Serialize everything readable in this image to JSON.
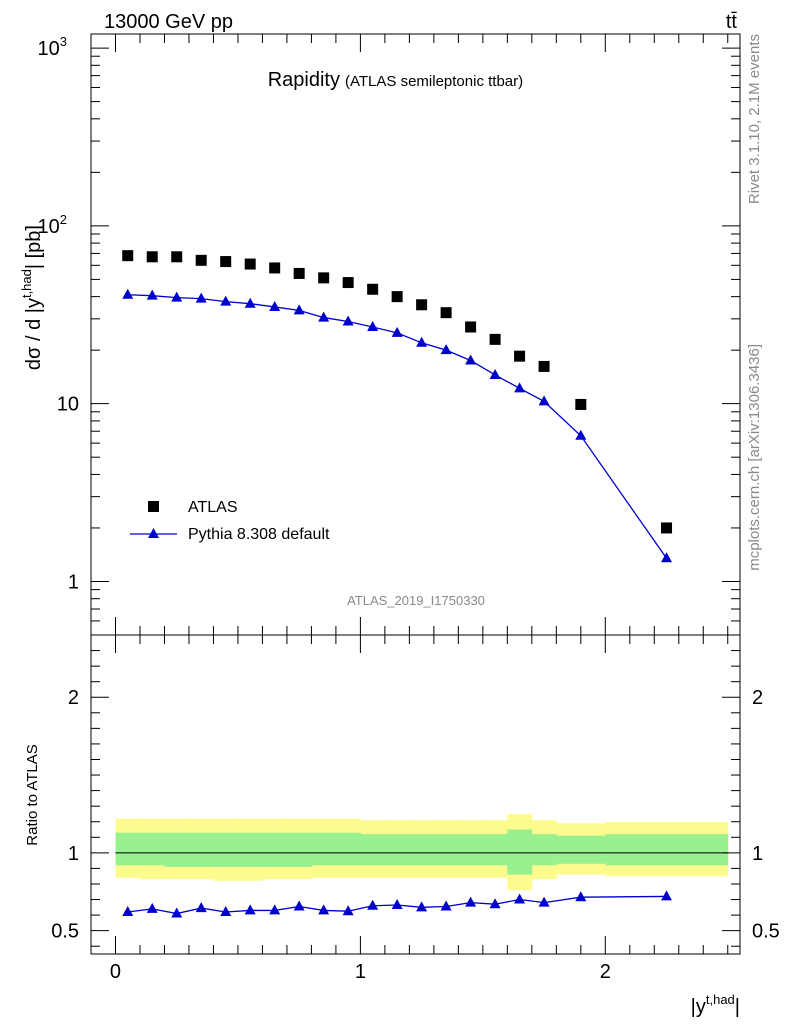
{
  "header": {
    "energy_label": "13000 GeV pp",
    "process_label": "tt̄"
  },
  "side": {
    "rivet_label": "Rivet 3.1.10,  2.1M events",
    "mcplots_label": "mcplots.cern.ch [arXiv:1306.3436]"
  },
  "chart_data": [
    {
      "type": "scatter",
      "title": "Rapidity",
      "subtitle": "(ATLAS semileptonic ttbar)",
      "ylabel": "dσ / d |y",
      "ylabel_sup": "t,had",
      "ylabel_unit": "| [pb]",
      "xlabel": "|y",
      "xlabel_sup": "t,had",
      "xlabel_close": "|",
      "yscale": "log",
      "xlim": [
        -0.1,
        2.55
      ],
      "ylim": [
        0.5,
        1200
      ],
      "y_tick_labels": [
        {
          "value": 1,
          "label": "1"
        },
        {
          "value": 10,
          "label": "10"
        },
        {
          "value": 100,
          "label": "10",
          "exp": "2"
        },
        {
          "value": 1000,
          "label": "10",
          "exp": "3"
        }
      ],
      "x_ticks": [
        0,
        1,
        2
      ],
      "analysis_id": "ATLAS_2019_I1750330",
      "legend": {
        "placement": "bottom-left"
      },
      "series": [
        {
          "name": "ATLAS",
          "marker": "square",
          "color": "#000000",
          "x": [
            0.05,
            0.15,
            0.25,
            0.35,
            0.45,
            0.55,
            0.65,
            0.75,
            0.85,
            0.95,
            1.05,
            1.15,
            1.25,
            1.35,
            1.45,
            1.55,
            1.65,
            1.75,
            1.9,
            2.25
          ],
          "y": [
            68,
            67,
            67,
            64,
            63,
            61,
            58,
            54,
            51,
            48,
            44,
            40,
            36,
            32.5,
            27,
            23,
            18.5,
            16.2,
            9.9,
            2.0
          ]
        },
        {
          "name": "Pythia 8.308 default",
          "marker": "triangle",
          "color": "#0000cc",
          "x": [
            0.05,
            0.15,
            0.25,
            0.35,
            0.45,
            0.55,
            0.65,
            0.75,
            0.85,
            0.95,
            1.05,
            1.15,
            1.25,
            1.35,
            1.45,
            1.55,
            1.65,
            1.75,
            1.9,
            2.25
          ],
          "y": [
            41,
            40.5,
            39.5,
            39,
            37.5,
            36.5,
            35,
            33.5,
            30.5,
            29,
            27,
            25,
            22,
            20,
            17.5,
            14.5,
            12.2,
            10.3,
            6.6,
            1.35
          ]
        }
      ]
    },
    {
      "type": "line",
      "ylabel": "Ratio to ATLAS",
      "ylim": [
        0.35,
        2.4
      ],
      "y_ticks": [
        0.5,
        1,
        2
      ],
      "y_tick_labels": [
        "0.5",
        "1",
        "2"
      ],
      "band_colors": {
        "inner": "#99f08f",
        "outer": "#fdfb8e"
      },
      "bands": {
        "edges": [
          0.0,
          0.1,
          0.2,
          0.3,
          0.4,
          0.5,
          0.6,
          0.7,
          0.8,
          0.9,
          1.0,
          1.1,
          1.2,
          1.3,
          1.4,
          1.5,
          1.6,
          1.7,
          1.8,
          2.0,
          2.5
        ],
        "outer_hi": [
          1.22,
          1.22,
          1.22,
          1.22,
          1.22,
          1.22,
          1.22,
          1.22,
          1.22,
          1.22,
          1.21,
          1.21,
          1.21,
          1.21,
          1.21,
          1.21,
          1.25,
          1.21,
          1.19,
          1.2
        ],
        "outer_lo": [
          0.84,
          0.83,
          0.83,
          0.83,
          0.82,
          0.82,
          0.83,
          0.83,
          0.84,
          0.84,
          0.84,
          0.84,
          0.84,
          0.84,
          0.84,
          0.84,
          0.76,
          0.83,
          0.86,
          0.85
        ],
        "inner_hi": [
          1.13,
          1.13,
          1.13,
          1.13,
          1.13,
          1.13,
          1.13,
          1.13,
          1.13,
          1.13,
          1.12,
          1.12,
          1.12,
          1.12,
          1.12,
          1.12,
          1.15,
          1.12,
          1.11,
          1.12
        ],
        "inner_lo": [
          0.92,
          0.92,
          0.91,
          0.91,
          0.91,
          0.91,
          0.91,
          0.91,
          0.92,
          0.92,
          0.92,
          0.92,
          0.92,
          0.92,
          0.92,
          0.92,
          0.86,
          0.92,
          0.93,
          0.92
        ]
      },
      "series": [
        {
          "name": "Pythia 8.308 default",
          "color": "#0000cc",
          "x": [
            0.05,
            0.15,
            0.25,
            0.35,
            0.45,
            0.55,
            0.65,
            0.75,
            0.85,
            0.95,
            1.05,
            1.15,
            1.25,
            1.35,
            1.45,
            1.55,
            1.65,
            1.75,
            1.9,
            2.25
          ],
          "y": [
            0.62,
            0.64,
            0.61,
            0.645,
            0.62,
            0.63,
            0.63,
            0.655,
            0.63,
            0.625,
            0.66,
            0.665,
            0.65,
            0.655,
            0.68,
            0.67,
            0.7,
            0.68,
            0.715,
            0.72
          ]
        }
      ]
    }
  ]
}
